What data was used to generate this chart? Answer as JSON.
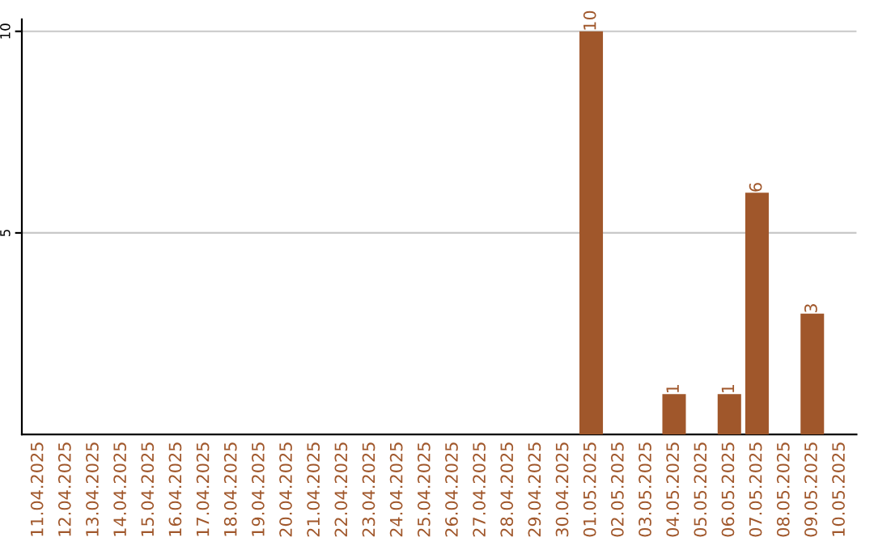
{
  "chart_data": {
    "type": "bar",
    "categories": [
      "11.04.2025",
      "12.04.2025",
      "13.04.2025",
      "14.04.2025",
      "15.04.2025",
      "16.04.2025",
      "17.04.2025",
      "18.04.2025",
      "19.04.2025",
      "20.04.2025",
      "21.04.2025",
      "22.04.2025",
      "23.04.2025",
      "24.04.2025",
      "25.04.2025",
      "26.04.2025",
      "27.04.2025",
      "28.04.2025",
      "29.04.2025",
      "30.04.2025",
      "01.05.2025",
      "02.05.2025",
      "03.05.2025",
      "04.05.2025",
      "05.05.2025",
      "06.05.2025",
      "07.05.2025",
      "08.05.2025",
      "09.05.2025",
      "10.05.2025"
    ],
    "values": [
      0,
      0,
      0,
      0,
      0,
      0,
      0,
      0,
      0,
      0,
      0,
      0,
      0,
      0,
      0,
      0,
      0,
      0,
      0,
      0,
      10,
      0,
      0,
      1,
      0,
      1,
      6,
      0,
      3,
      0
    ],
    "value_labels": [
      null,
      null,
      null,
      null,
      null,
      null,
      null,
      null,
      null,
      null,
      null,
      null,
      null,
      null,
      null,
      null,
      null,
      null,
      null,
      null,
      "10",
      null,
      null,
      "1",
      null,
      "1",
      "6",
      null,
      "3",
      null
    ],
    "color": "#a0572b",
    "ylim": [
      0,
      10.3
    ],
    "yticks": [
      5,
      10
    ],
    "grid": "y",
    "legend": false
  }
}
